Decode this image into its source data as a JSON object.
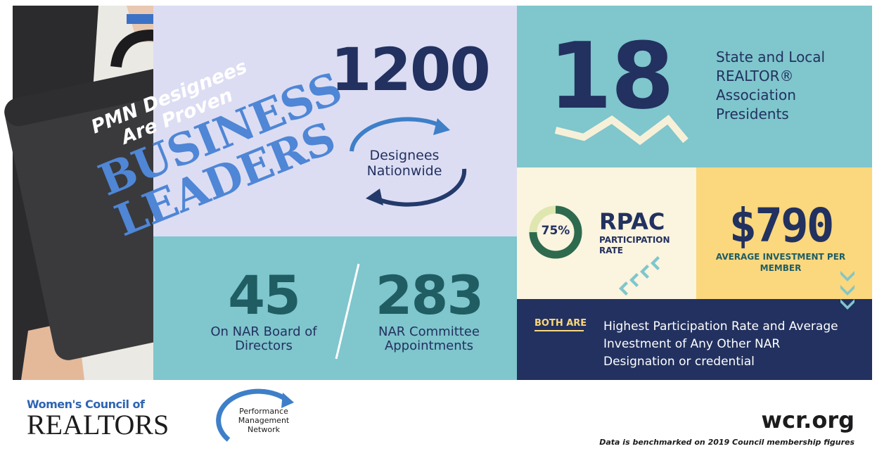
{
  "briefcase": {
    "line1": "PMN Designees",
    "line2": "Are Proven",
    "line3": "BUSINESS",
    "line4": "LEADERS"
  },
  "designees": {
    "number": "1200",
    "label": "Designees Nationwide"
  },
  "board": {
    "number": "45",
    "label": "On NAR Board of Directors"
  },
  "committee": {
    "number": "283",
    "label": "NAR Committee Appointments"
  },
  "presidents": {
    "number": "18",
    "label": "State and Local REALTOR® Association Presidents"
  },
  "rpac": {
    "percent": "75%",
    "title": "RPAC",
    "label": "PARTICIPATION RATE"
  },
  "investment": {
    "amount": "$790",
    "label": "AVERAGE INVESTMENT PER MEMBER"
  },
  "both": {
    "tag": "BOTH ARE",
    "text": "Highest Participation Rate and Average Investment of Any Other NAR Designation or credential"
  },
  "footer": {
    "wcr_logo_top": "Women's Council of",
    "wcr_logo_bottom": "REALTORS",
    "pmn_logo": "Performance Management Network",
    "site": "wcr.org",
    "note": "Data is benchmarked on 2019 Council membership figures"
  }
}
